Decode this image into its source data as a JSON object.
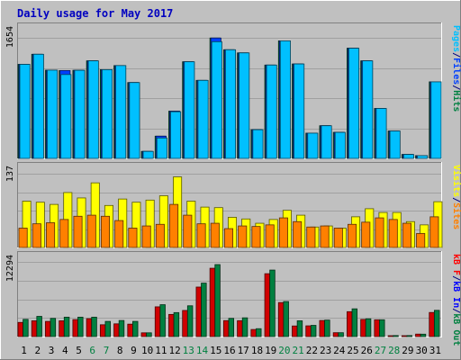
{
  "chart_data": {
    "type": "bar",
    "title": "Daily usage for May 2017",
    "x": [
      "1",
      "2",
      "3",
      "4",
      "5",
      "6",
      "7",
      "8",
      "9",
      "10",
      "11",
      "12",
      "13",
      "14",
      "15",
      "16",
      "17",
      "18",
      "19",
      "20",
      "21",
      "22",
      "23",
      "24",
      "25",
      "26",
      "27",
      "28",
      "29",
      "30",
      "31"
    ],
    "weekend_days": [
      "6",
      "7",
      "13",
      "14",
      "20",
      "21",
      "27",
      "28"
    ],
    "panels": [
      {
        "max_label": "1654",
        "ymax": 1654,
        "right_legend": [
          {
            "text": "Pages",
            "color": "#00c0ff"
          },
          {
            "text": "/",
            "color": "#000080"
          },
          {
            "text": "Files",
            "color": "#0040ff"
          },
          {
            "text": "/",
            "color": "#000080"
          },
          {
            "text": "Hits",
            "color": "#008040"
          }
        ],
        "series": [
          {
            "name": "Hits",
            "color": "#008040",
            "values": [
              1290,
              1428,
              1210,
              1205,
              1208,
              1338,
              1217,
              1273,
              1040,
              96,
              305,
              648,
              1325,
              1070,
              1651,
              1490,
              1447,
              393,
              1280,
              1612,
              1295,
              346,
              448,
              357,
              1511,
              1338,
              685,
              376,
              54,
              38,
              1050
            ]
          },
          {
            "name": "Files",
            "color": "#0040ff",
            "values": [
              1290,
              1428,
              1210,
              1205,
              1208,
              1338,
              1217,
              1273,
              1040,
              96,
              305,
              648,
              1325,
              1070,
              1651,
              1490,
              1447,
              393,
              1280,
              1612,
              1295,
              346,
              448,
              357,
              1511,
              1338,
              685,
              376,
              54,
              38,
              1050
            ]
          },
          {
            "name": "Pages",
            "color": "#00c0ff",
            "values": [
              1290,
              1428,
              1210,
              1150,
              1208,
              1338,
              1217,
              1273,
              1040,
              96,
              280,
              640,
              1325,
              1070,
              1600,
              1490,
              1447,
              393,
              1280,
              1612,
              1295,
              346,
              448,
              357,
              1511,
              1338,
              685,
              376,
              54,
              38,
              1050
            ]
          }
        ]
      },
      {
        "max_label": "137",
        "ymax": 137,
        "right_legend": [
          {
            "text": "Visits",
            "color": "#ffff00"
          },
          {
            "text": "/",
            "color": "#000080"
          },
          {
            "text": "Sites",
            "color": "#ff8000"
          }
        ],
        "series": [
          {
            "name": "Visits",
            "color": "#ffff00",
            "values": [
              86,
              84,
              80,
              102,
              92,
              120,
              78,
              90,
              84,
              88,
              96,
              131,
              86,
              75,
              74,
              56,
              53,
              45,
              52,
              69,
              60,
              38,
              40,
              36,
              57,
              72,
              65,
              65,
              48,
              42,
              85
            ]
          },
          {
            "name": "Sites",
            "color": "#ff8000",
            "values": [
              36,
              44,
              46,
              52,
              58,
              60,
              58,
              50,
              36,
              40,
              43,
              80,
              60,
              44,
              45,
              35,
              40,
              39,
              42,
              55,
              48,
              38,
              40,
              36,
              43,
              47,
              55,
              52,
              45,
              26,
              57
            ]
          }
        ]
      },
      {
        "max_label": "12294",
        "ymax": 12294,
        "right_legend": [
          {
            "text": "kB F",
            "color": "#ff0000"
          },
          {
            "text": "/",
            "color": "#000080"
          },
          {
            "text": "kB In",
            "color": "#0000ff"
          },
          {
            "text": "/",
            "color": "#000080"
          },
          {
            "text": "kB Out",
            "color": "#008040"
          }
        ],
        "series": [
          {
            "name": "kB F",
            "color": "#d00000",
            "values": [
              2335,
              2600,
              2500,
              2600,
              2800,
              2950,
              1950,
              2100,
              2050,
              620,
              4900,
              3650,
              4300,
              8150,
              11250,
              2630,
              2620,
              1170,
              10350,
              5600,
              1750,
              1770,
              2650,
              640,
              4100,
              2830,
              2770,
              120,
              140,
              410,
              3970
            ]
          },
          {
            "name": "kB Out",
            "color": "#008040",
            "values": [
              2840,
              3330,
              3000,
              3200,
              3200,
              3200,
              2500,
              2650,
              2500,
              620,
              5250,
              3950,
              5070,
              8800,
              11850,
              3000,
              3090,
              1300,
              10950,
              5770,
              2600,
              1850,
              2720,
              640,
              4570,
              2930,
              2770,
              170,
              170,
              400,
              4320
            ]
          }
        ]
      }
    ]
  }
}
